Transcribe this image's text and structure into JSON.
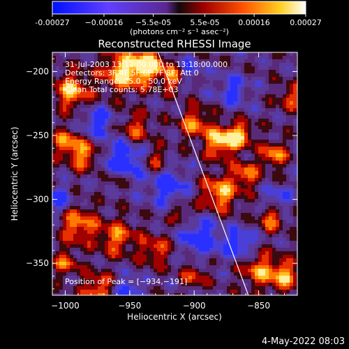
{
  "chart_data": {
    "type": "heatmap",
    "title": "Reconstructed RHESSI Image",
    "xlabel": "Heliocentric X (arcsec)",
    "ylabel": "Heliocentric Y (arcsec)",
    "xlim": [
      -1010,
      -820
    ],
    "ylim": [
      -375,
      -185
    ],
    "x_ticks": [
      -1000,
      -950,
      -900,
      -850
    ],
    "y_ticks": [
      -200,
      -250,
      -300,
      -350
    ],
    "x_tick_labels": [
      "−1000",
      "−950",
      "−900",
      "−850"
    ],
    "y_tick_labels": [
      "−200",
      "−250",
      "−300",
      "−350"
    ],
    "colorbar": {
      "range": [
        -0.00027,
        0.00027
      ],
      "ticks": [
        -0.00027,
        -0.00016,
        -5.5e-05,
        5.5e-05,
        0.00016,
        0.00027
      ],
      "tick_labels": [
        "-0.00027",
        "−0.00016",
        "−5.5e-05",
        "5.5e-05",
        "0.00016",
        "0.00027"
      ],
      "units": "(photons cm⁻² s⁻¹ asec⁻²)"
    },
    "annotations": [
      "31-Jul-2003 13:12:00.000 to 13:18:00.000",
      "Detectors: 3F 4F 5F 6F 7F 8F, Att 0",
      "Energy Range: 25.0 - 50.0 keV",
      "Clean    Total counts: 5.78E+03",
      "Position of Peak = [−934,−191]"
    ],
    "peak": [
      -934,
      -191
    ],
    "limb_line": {
      "from": [
        -928,
        -185
      ],
      "to": [
        -858,
        -375
      ]
    }
  },
  "footer": {
    "date": "4-May-2022 08:03"
  }
}
